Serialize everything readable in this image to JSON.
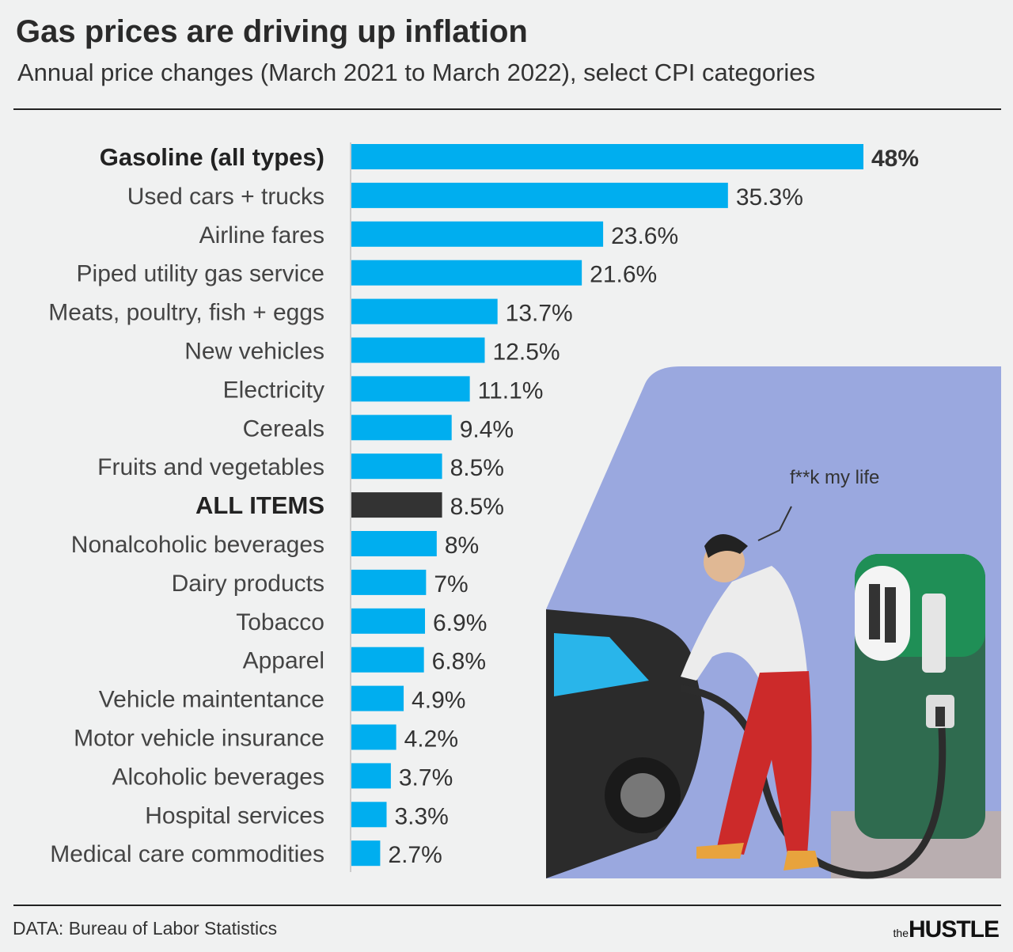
{
  "title": "Gas prices are driving up inflation",
  "subtitle": "Annual price changes (March 2021 to March 2022), select CPI categories",
  "source": "DATA: Bureau of Labor Statistics",
  "logo": {
    "small": "the",
    "main": "HUSTLE"
  },
  "illustration": {
    "speech": "f**k my life"
  },
  "colors": {
    "bar": "#00aeef",
    "highlight_bar": "#333333",
    "background": "#f0f1f1",
    "illustration_bg": "#9aa8df"
  },
  "chart_data": {
    "type": "bar",
    "orientation": "horizontal",
    "title": "Gas prices are driving up inflation",
    "subtitle": "Annual price changes (March 2021 to March 2022), select CPI categories",
    "categories": [
      "Gasoline (all types)",
      "Used cars + trucks",
      "Airline fares",
      "Piped utility gas service",
      "Meats, poultry, fish + eggs",
      "New vehicles",
      "Electricity",
      "Cereals",
      "Fruits and vegetables",
      "ALL ITEMS",
      "Nonalcoholic beverages",
      "Dairy products",
      "Tobacco",
      "Apparel",
      "Vehicle maintentance",
      "Motor vehicle insurance",
      "Alcoholic beverages",
      "Hospital services",
      "Medical care commodities"
    ],
    "values": [
      48,
      35.3,
      23.6,
      21.6,
      13.7,
      12.5,
      11.1,
      9.4,
      8.5,
      8.5,
      8,
      7,
      6.9,
      6.8,
      4.9,
      4.2,
      3.7,
      3.3,
      2.7
    ],
    "labels": [
      "48%",
      "35.3%",
      "23.6%",
      "21.6%",
      "13.7%",
      "12.5%",
      "11.1%",
      "9.4%",
      "8.5%",
      "8.5%",
      "8%",
      "7%",
      "6.9%",
      "6.8%",
      "4.9%",
      "4.2%",
      "3.7%",
      "3.3%",
      "2.7%"
    ],
    "bold_categories": [
      "Gasoline (all types)",
      "ALL ITEMS"
    ],
    "highlight": "ALL ITEMS",
    "xlim": [
      0,
      48
    ],
    "grid": false,
    "unit": "%"
  }
}
